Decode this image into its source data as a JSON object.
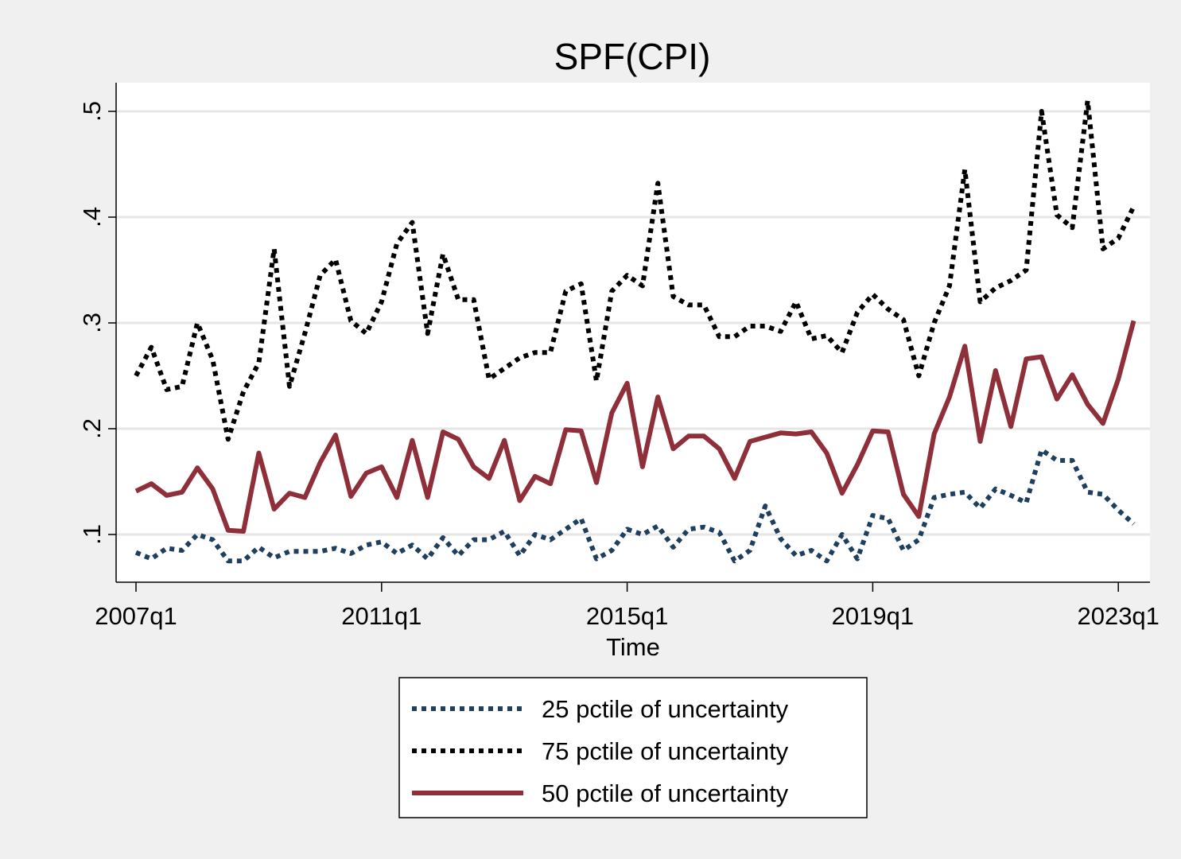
{
  "chart_data": {
    "type": "line",
    "title": "SPF(CPI)",
    "xlabel": "Time",
    "ylabel": "",
    "x_start": "2007q1",
    "x_tick_labels": [
      "2007q1",
      "2011q1",
      "2015q1",
      "2019q1",
      "2023q1"
    ],
    "y_tick_labels": [
      ".1",
      ".2",
      ".3",
      ".4",
      ".5"
    ],
    "y_ticks": [
      0.1,
      0.2,
      0.3,
      0.4,
      0.5
    ],
    "ylim": [
      0.055,
      0.527
    ],
    "grid": true,
    "legend_position": "bottom",
    "series": [
      {
        "name": "25 pctile of uncertainty",
        "style": "dotted",
        "color": "#1f3f5f",
        "values": [
          0.083,
          0.077,
          0.087,
          0.085,
          0.1,
          0.095,
          0.075,
          0.075,
          0.088,
          0.078,
          0.084,
          0.084,
          0.084,
          0.087,
          0.082,
          0.09,
          0.093,
          0.082,
          0.09,
          0.077,
          0.097,
          0.08,
          0.095,
          0.095,
          0.103,
          0.08,
          0.1,
          0.095,
          0.105,
          0.115,
          0.077,
          0.085,
          0.105,
          0.1,
          0.108,
          0.088,
          0.105,
          0.107,
          0.102,
          0.075,
          0.085,
          0.127,
          0.096,
          0.08,
          0.085,
          0.075,
          0.1,
          0.077,
          0.118,
          0.115,
          0.085,
          0.095,
          0.135,
          0.138,
          0.14,
          0.125,
          0.143,
          0.137,
          0.13,
          0.18,
          0.17,
          0.17,
          0.14,
          0.138,
          0.123,
          0.11
        ]
      },
      {
        "name": "75 pctile of uncertainty",
        "style": "dotted",
        "color": "#000000",
        "values": [
          0.25,
          0.277,
          0.237,
          0.24,
          0.3,
          0.265,
          0.19,
          0.235,
          0.262,
          0.37,
          0.24,
          0.29,
          0.345,
          0.36,
          0.302,
          0.29,
          0.32,
          0.375,
          0.395,
          0.29,
          0.365,
          0.322,
          0.322,
          0.247,
          0.257,
          0.267,
          0.272,
          0.272,
          0.33,
          0.337,
          0.245,
          0.33,
          0.345,
          0.335,
          0.432,
          0.325,
          0.317,
          0.317,
          0.287,
          0.287,
          0.297,
          0.297,
          0.292,
          0.32,
          0.285,
          0.288,
          0.272,
          0.31,
          0.327,
          0.313,
          0.303,
          0.25,
          0.3,
          0.335,
          0.445,
          0.32,
          0.333,
          0.34,
          0.35,
          0.5,
          0.402,
          0.39,
          0.51,
          0.37,
          0.38,
          0.41
        ]
      },
      {
        "name": "50 pctile of uncertainty",
        "style": "solid",
        "color": "#8e2f3a",
        "values": [
          0.141,
          0.148,
          0.137,
          0.14,
          0.163,
          0.143,
          0.104,
          0.103,
          0.177,
          0.124,
          0.139,
          0.135,
          0.168,
          0.194,
          0.136,
          0.158,
          0.164,
          0.135,
          0.189,
          0.135,
          0.197,
          0.19,
          0.164,
          0.153,
          0.189,
          0.132,
          0.155,
          0.148,
          0.199,
          0.198,
          0.149,
          0.215,
          0.243,
          0.164,
          0.23,
          0.181,
          0.193,
          0.193,
          0.181,
          0.153,
          0.188,
          0.192,
          0.196,
          0.195,
          0.197,
          0.177,
          0.139,
          0.166,
          0.198,
          0.197,
          0.138,
          0.117,
          0.195,
          0.23,
          0.278,
          0.188,
          0.255,
          0.202,
          0.266,
          0.268,
          0.228,
          0.251,
          0.223,
          0.205,
          0.247,
          0.302
        ]
      }
    ]
  }
}
